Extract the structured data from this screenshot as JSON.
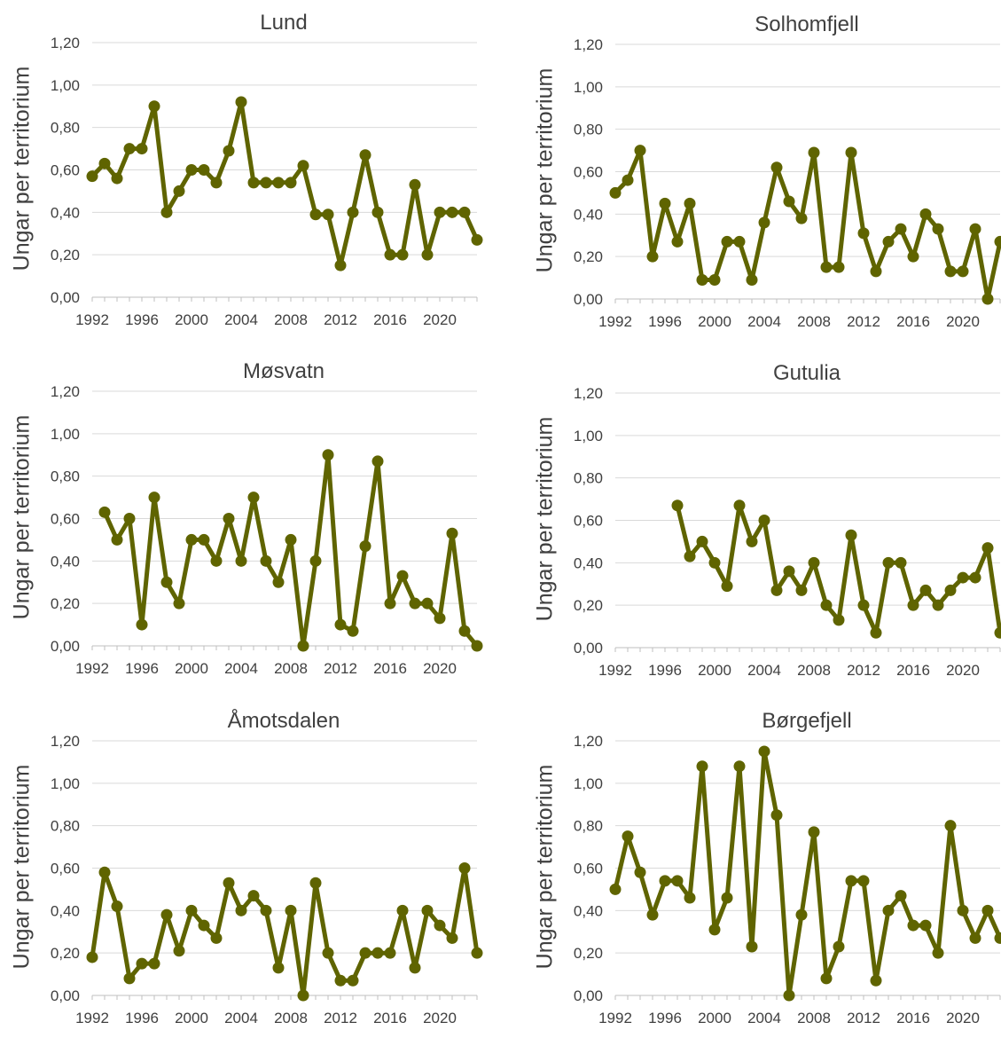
{
  "colors": {
    "series": "#5f6400",
    "grid": "#d9d9d9",
    "axis": "#bfbfbf",
    "text": "#404040"
  },
  "chart_data": [
    {
      "type": "line",
      "title": "Lund",
      "ylabel": "Ungar per territorium",
      "xlabel": "",
      "ylim": [
        0,
        1.2
      ],
      "xlim": [
        1992,
        2023
      ],
      "yticks": [
        "0,00",
        "0,20",
        "0,40",
        "0,60",
        "0,80",
        "1,00",
        "1,20"
      ],
      "xticks": [
        "1992",
        "1996",
        "2000",
        "2004",
        "2008",
        "2012",
        "2016",
        "2020"
      ],
      "grid": true,
      "x": [
        1992,
        1993,
        1994,
        1995,
        1996,
        1997,
        1998,
        1999,
        2000,
        2001,
        2002,
        2003,
        2004,
        2005,
        2006,
        2007,
        2008,
        2009,
        2010,
        2011,
        2012,
        2013,
        2014,
        2015,
        2016,
        2017,
        2018,
        2019,
        2020,
        2021,
        2022,
        2023
      ],
      "values": [
        0.57,
        0.63,
        0.56,
        0.7,
        0.7,
        0.9,
        0.4,
        0.5,
        0.6,
        0.6,
        0.54,
        0.69,
        0.92,
        0.54,
        0.54,
        0.54,
        0.54,
        0.62,
        0.39,
        0.39,
        0.15,
        0.4,
        0.67,
        0.4,
        0.2,
        0.2,
        0.53,
        0.2,
        0.4,
        0.4,
        0.4,
        0.27
      ]
    },
    {
      "type": "line",
      "title": "Solhomfjell",
      "ylabel": "Ungar per territorium",
      "xlabel": "",
      "ylim": [
        0,
        1.2
      ],
      "xlim": [
        1992,
        2023
      ],
      "yticks": [
        "0,00",
        "0,20",
        "0,40",
        "0,60",
        "0,80",
        "1,00",
        "1,20"
      ],
      "xticks": [
        "1992",
        "1996",
        "2000",
        "2004",
        "2008",
        "2012",
        "2016",
        "2020"
      ],
      "grid": true,
      "x": [
        1992,
        1993,
        1994,
        1995,
        1996,
        1997,
        1998,
        1999,
        2000,
        2001,
        2002,
        2003,
        2004,
        2005,
        2006,
        2007,
        2008,
        2009,
        2010,
        2011,
        2012,
        2013,
        2014,
        2015,
        2016,
        2017,
        2018,
        2019,
        2020,
        2021,
        2022,
        2023
      ],
      "values": [
        0.5,
        0.56,
        0.7,
        0.2,
        0.45,
        0.27,
        0.45,
        0.09,
        0.09,
        0.27,
        0.27,
        0.09,
        0.36,
        0.62,
        0.46,
        0.38,
        0.69,
        0.15,
        0.15,
        0.69,
        0.31,
        0.13,
        0.27,
        0.33,
        0.2,
        0.4,
        0.33,
        0.13,
        0.13,
        0.33,
        0.0,
        0.27
      ]
    },
    {
      "type": "line",
      "title": "Møsvatn",
      "ylabel": "Ungar per territorium",
      "xlabel": "",
      "ylim": [
        0,
        1.2
      ],
      "xlim": [
        1992,
        2023
      ],
      "yticks": [
        "0,00",
        "0,20",
        "0,40",
        "0,60",
        "0,80",
        "1,00",
        "1,20"
      ],
      "xticks": [
        "1992",
        "1996",
        "2000",
        "2004",
        "2008",
        "2012",
        "2016",
        "2020"
      ],
      "grid": true,
      "x": [
        1993,
        1994,
        1995,
        1996,
        1997,
        1998,
        1999,
        2000,
        2001,
        2002,
        2003,
        2004,
        2005,
        2006,
        2007,
        2008,
        2009,
        2010,
        2011,
        2012,
        2013,
        2014,
        2015,
        2016,
        2017,
        2018,
        2019,
        2020,
        2021,
        2022,
        2023
      ],
      "values": [
        0.63,
        0.5,
        0.6,
        0.1,
        0.7,
        0.3,
        0.2,
        0.5,
        0.5,
        0.4,
        0.6,
        0.4,
        0.7,
        0.4,
        0.3,
        0.5,
        0.0,
        0.4,
        0.9,
        0.1,
        0.07,
        0.47,
        0.87,
        0.2,
        0.33,
        0.2,
        0.2,
        0.13,
        0.53,
        0.07,
        0.0
      ]
    },
    {
      "type": "line",
      "title": "Gutulia",
      "ylabel": "Ungar per territorium",
      "xlabel": "",
      "ylim": [
        0,
        1.2
      ],
      "xlim": [
        1992,
        2023
      ],
      "yticks": [
        "0,00",
        "0,20",
        "0,40",
        "0,60",
        "0,80",
        "1,00",
        "1,20"
      ],
      "xticks": [
        "1992",
        "1996",
        "2000",
        "2004",
        "2008",
        "2012",
        "2016",
        "2020"
      ],
      "grid": true,
      "x": [
        1997,
        1998,
        1999,
        2000,
        2001,
        2002,
        2003,
        2004,
        2005,
        2006,
        2007,
        2008,
        2009,
        2010,
        2011,
        2012,
        2013,
        2014,
        2015,
        2016,
        2017,
        2018,
        2019,
        2020,
        2021,
        2022,
        2023
      ],
      "values": [
        0.67,
        0.43,
        0.5,
        0.4,
        0.29,
        0.67,
        0.5,
        0.6,
        0.27,
        0.36,
        0.27,
        0.4,
        0.2,
        0.13,
        0.53,
        0.2,
        0.07,
        0.4,
        0.4,
        0.2,
        0.27,
        0.2,
        0.27,
        0.33,
        0.33,
        0.47,
        0.07
      ]
    },
    {
      "type": "line",
      "title": "Åmotsdalen",
      "ylabel": "Ungar per territorium",
      "xlabel": "",
      "ylim": [
        0,
        1.2
      ],
      "xlim": [
        1992,
        2023
      ],
      "yticks": [
        "0,00",
        "0,20",
        "0,40",
        "0,60",
        "0,80",
        "1,00",
        "1,20"
      ],
      "xticks": [
        "1992",
        "1996",
        "2000",
        "2004",
        "2008",
        "2012",
        "2016",
        "2020"
      ],
      "grid": true,
      "x": [
        1992,
        1993,
        1994,
        1995,
        1996,
        1997,
        1998,
        1999,
        2000,
        2001,
        2002,
        2003,
        2004,
        2005,
        2006,
        2007,
        2008,
        2009,
        2010,
        2011,
        2012,
        2013,
        2014,
        2015,
        2016,
        2017,
        2018,
        2019,
        2020,
        2021,
        2022,
        2023
      ],
      "values": [
        0.18,
        0.58,
        0.42,
        0.08,
        0.15,
        0.15,
        0.38,
        0.21,
        0.4,
        0.33,
        0.27,
        0.53,
        0.4,
        0.47,
        0.4,
        0.13,
        0.4,
        0.0,
        0.53,
        0.2,
        0.07,
        0.07,
        0.2,
        0.2,
        0.2,
        0.4,
        0.13,
        0.4,
        0.33,
        0.27,
        0.6,
        0.2
      ]
    },
    {
      "type": "line",
      "title": "Børgefjell",
      "ylabel": "Ungar per territorium",
      "xlabel": "",
      "ylim": [
        0,
        1.2
      ],
      "xlim": [
        1992,
        2023
      ],
      "yticks": [
        "0,00",
        "0,20",
        "0,40",
        "0,60",
        "0,80",
        "1,00",
        "1,20"
      ],
      "xticks": [
        "1992",
        "1996",
        "2000",
        "2004",
        "2008",
        "2012",
        "2016",
        "2020"
      ],
      "grid": true,
      "x": [
        1992,
        1993,
        1994,
        1995,
        1996,
        1997,
        1998,
        1999,
        2000,
        2001,
        2002,
        2003,
        2004,
        2005,
        2006,
        2007,
        2008,
        2009,
        2010,
        2011,
        2012,
        2013,
        2014,
        2015,
        2016,
        2017,
        2018,
        2019,
        2020,
        2021,
        2022,
        2023
      ],
      "values": [
        0.5,
        0.75,
        0.58,
        0.38,
        0.54,
        0.54,
        0.46,
        1.08,
        0.31,
        0.46,
        1.08,
        0.23,
        1.15,
        0.85,
        0.0,
        0.38,
        0.77,
        0.08,
        0.23,
        0.54,
        0.54,
        0.07,
        0.4,
        0.47,
        0.33,
        0.33,
        0.2,
        0.8,
        0.4,
        0.27,
        0.4,
        0.27
      ]
    }
  ]
}
